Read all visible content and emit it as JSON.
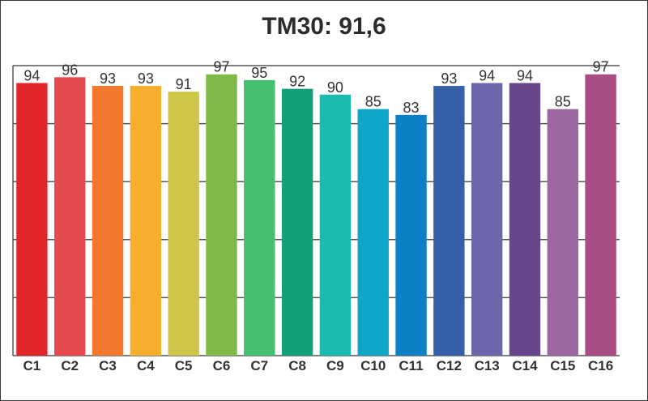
{
  "chart_data": {
    "type": "bar",
    "title": "TM30: 91,6",
    "categories": [
      "C1",
      "C2",
      "C3",
      "C4",
      "C5",
      "C6",
      "C7",
      "C8",
      "C9",
      "C10",
      "C11",
      "C12",
      "C13",
      "C14",
      "C15",
      "C16"
    ],
    "values": [
      94,
      96,
      93,
      93,
      91,
      97,
      95,
      92,
      90,
      85,
      83,
      93,
      94,
      94,
      85,
      97
    ],
    "colors": [
      "#e3262b",
      "#e44a4e",
      "#f2782e",
      "#f6ae2d",
      "#cec649",
      "#80b84a",
      "#43c070",
      "#149f7b",
      "#1bbab0",
      "#0ea5c6",
      "#0b80c4",
      "#3560a8",
      "#6e66aa",
      "#674789",
      "#9d68a1",
      "#a84d83"
    ],
    "ylim": [
      0,
      100
    ],
    "grid": true,
    "show_data_labels": true,
    "legend": "none"
  }
}
